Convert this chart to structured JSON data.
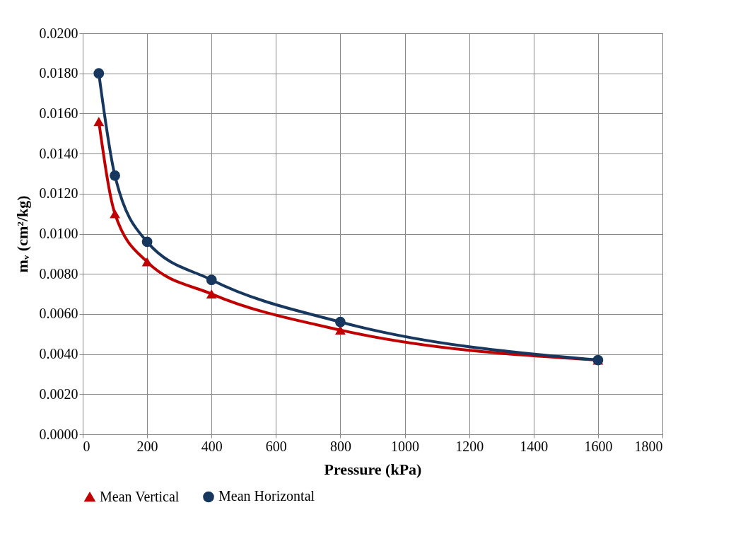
{
  "chart_data": {
    "type": "line",
    "xlabel": "Pressure (kPa)",
    "ylabel": "mᵥ (cm²/kg)",
    "x": [
      50,
      100,
      200,
      400,
      800,
      1600
    ],
    "series": [
      {
        "name": "Mean Vertical",
        "color": "#c00000",
        "marker": "triangle",
        "values": [
          0.0156,
          0.011,
          0.0086,
          0.007,
          0.0052,
          0.0037
        ]
      },
      {
        "name": "Mean Horizontal",
        "color": "#17375e",
        "marker": "circle",
        "values": [
          0.018,
          0.0129,
          0.0096,
          0.0077,
          0.0056,
          0.0037
        ]
      }
    ],
    "xlim": [
      0,
      1800
    ],
    "xticks": [
      0,
      200,
      400,
      600,
      800,
      1000,
      1200,
      1400,
      1600,
      1800
    ],
    "ylim": [
      0,
      0.02
    ],
    "yticks": [
      {
        "value": 0,
        "label": "0.0000"
      },
      {
        "value": 0.002,
        "label": "0.0020"
      },
      {
        "value": 0.004,
        "label": "0.0040"
      },
      {
        "value": 0.006,
        "label": "0.0060"
      },
      {
        "value": 0.008,
        "label": "0.0080"
      },
      {
        "value": 0.01,
        "label": "0.0100"
      },
      {
        "value": 0.012,
        "label": "0.0120"
      },
      {
        "value": 0.014,
        "label": "0.0140"
      },
      {
        "value": 0.016,
        "label": "0.0160"
      },
      {
        "value": 0.018,
        "label": "0.0180"
      },
      {
        "value": 0.02,
        "label": "0.0200"
      }
    ],
    "grid": true,
    "legend": "bottom",
    "line_style": "solid"
  }
}
